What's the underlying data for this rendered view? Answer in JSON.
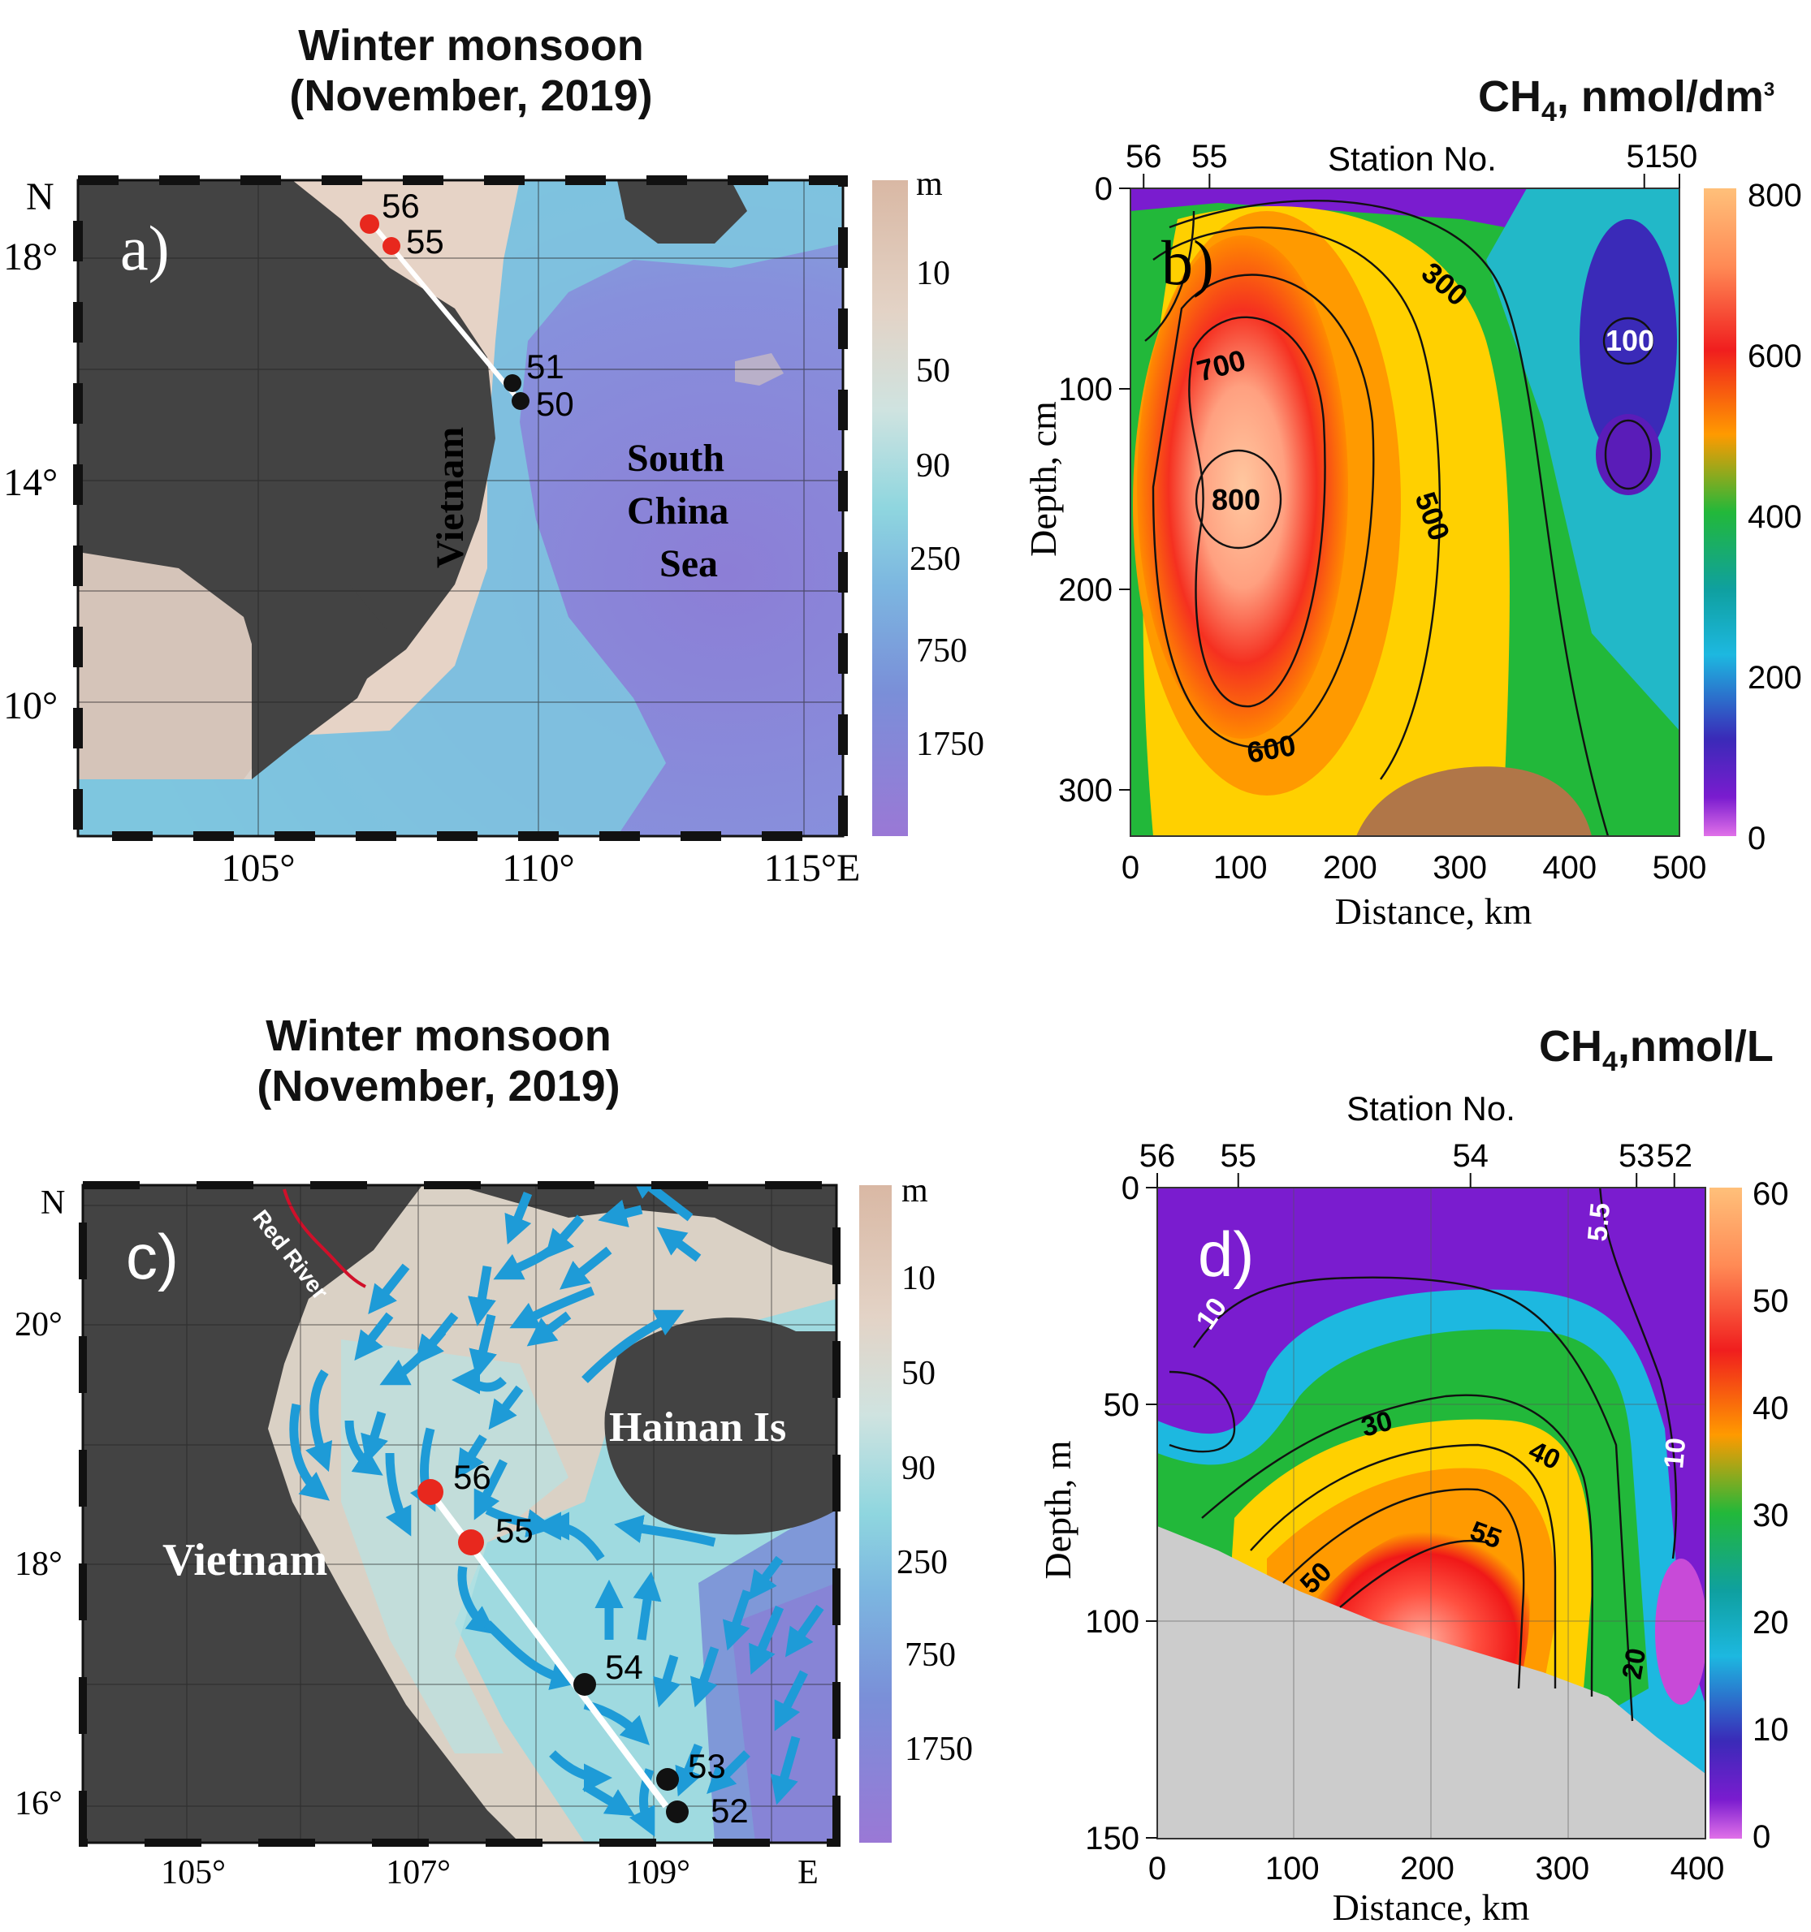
{
  "panel_a": {
    "title_line1": "Winter monsoon",
    "title_line2": "(November, 2019)",
    "label": "a)",
    "north": "N",
    "lat_labels": [
      "18°",
      "14°",
      "10°"
    ],
    "lon_labels": [
      "105°",
      "110°",
      "115°E"
    ],
    "country": "Vietnam",
    "sea_line1": "South",
    "sea_line2": "China",
    "sea_line3": "Sea",
    "stations": [
      {
        "id": "56",
        "color": "#e8281e"
      },
      {
        "id": "55",
        "color": "#e8281e"
      },
      {
        "id": "51",
        "color": "#111111"
      },
      {
        "id": "50",
        "color": "#111111"
      }
    ],
    "depth_unit": "m",
    "depth_levels": [
      "10",
      "50",
      "90",
      "250",
      "750",
      "1750"
    ]
  },
  "panel_b": {
    "unit_prefix": "CH",
    "unit_sub": "4",
    "unit_rest": ", nmol/dm",
    "unit_sup": "3",
    "label": "b)",
    "top_axis_title": "Station No.",
    "stations": [
      {
        "id": "56",
        "distance_km": 12
      },
      {
        "id": "55",
        "distance_km": 72
      },
      {
        "id": "51",
        "distance_km": 468
      },
      {
        "id": "50",
        "distance_km": 500
      }
    ],
    "x_axis_title": "Distance, km",
    "x_ticks": [
      "0",
      "100",
      "200",
      "300",
      "400",
      "500"
    ],
    "y_axis_title": "Depth, cm",
    "y_ticks": [
      "0",
      "100",
      "200",
      "300"
    ],
    "contour_labels": [
      "300",
      "100",
      "700",
      "800",
      "500",
      "600"
    ],
    "colorbar_ticks": [
      "800",
      "600",
      "400",
      "200",
      "0"
    ]
  },
  "panel_c": {
    "title_line1": "Winter monsoon",
    "title_line2": "(November, 2019)",
    "label": "c)",
    "north": "N",
    "lat_labels": [
      "20°",
      "18°",
      "16°"
    ],
    "lon_labels": [
      "105°",
      "107°",
      "109°",
      "E"
    ],
    "river": "Red River",
    "island": "Hainan Is",
    "country": "Vietnam",
    "stations": [
      {
        "id": "56",
        "color": "#e8281e"
      },
      {
        "id": "55",
        "color": "#e8281e"
      },
      {
        "id": "54",
        "color": "#111111"
      },
      {
        "id": "53",
        "color": "#111111"
      },
      {
        "id": "52",
        "color": "#111111"
      }
    ],
    "depth_unit": "m",
    "depth_levels": [
      "10",
      "50",
      "90",
      "250",
      "750",
      "1750"
    ],
    "arrow_color": "#1e9bd7"
  },
  "panel_d": {
    "unit_prefix": "CH",
    "unit_sub": "4",
    "unit_rest": ",nmol/L",
    "label": "d)",
    "top_axis_title": "Station No.",
    "stations": [
      {
        "id": "56",
        "distance_km": 0
      },
      {
        "id": "55",
        "distance_km": 60
      },
      {
        "id": "54",
        "distance_km": 232
      },
      {
        "id": "53",
        "distance_km": 355
      },
      {
        "id": "52",
        "distance_km": 383
      }
    ],
    "x_axis_title": "Distance, km",
    "x_ticks": [
      "0",
      "100",
      "200",
      "300",
      "400"
    ],
    "y_axis_title": "Depth, m",
    "y_ticks": [
      "0",
      "50",
      "100",
      "150"
    ],
    "contour_labels": [
      "5.5",
      "10",
      "30",
      "40",
      "55",
      "50",
      "10",
      "20"
    ],
    "colorbar_ticks": [
      "60",
      "50",
      "40",
      "30",
      "20",
      "10",
      "0"
    ]
  }
}
